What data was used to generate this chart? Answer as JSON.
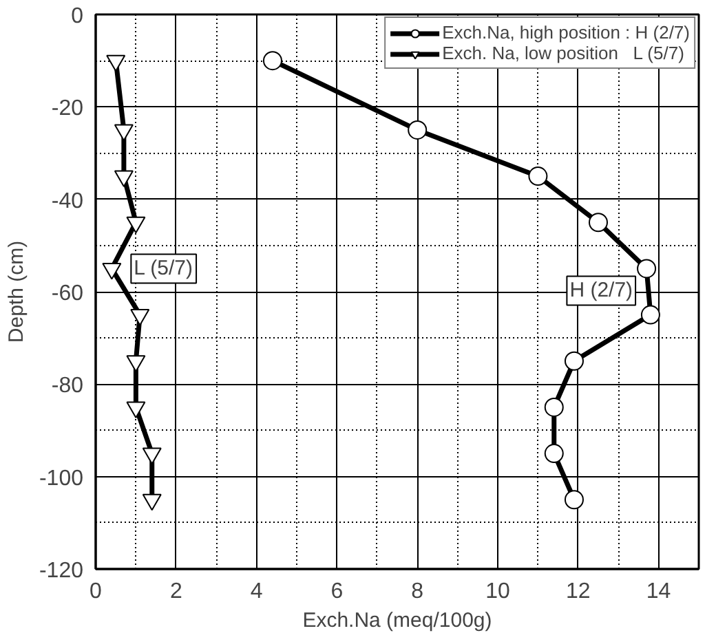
{
  "chart_data": {
    "type": "line",
    "xlabel": "Exch.Na (meq/100g)",
    "ylabel": "Depth (cm)",
    "xlim": [
      0,
      15
    ],
    "xticks": [
      0,
      2,
      4,
      6,
      8,
      10,
      12,
      14
    ],
    "ylim": [
      -120,
      0
    ],
    "yticks": [
      -120,
      -100,
      -80,
      -60,
      -40,
      -20,
      0
    ],
    "grid": true,
    "legend": "top right",
    "line_style": "solid",
    "series": [
      {
        "name": "Exch.Na, high position : H (2/7)",
        "color": "#000000",
        "marker": "circle",
        "x": [
          4.4,
          8.0,
          11.0,
          12.5,
          13.7,
          13.8,
          11.9,
          11.4,
          11.4,
          11.9
        ],
        "values": [
          -10,
          -25,
          -35,
          -45,
          -55,
          -65,
          -75,
          -85,
          -95,
          -105
        ]
      },
      {
        "name": "Exch. Na, low position   L (5/7)",
        "color": "#000000",
        "marker": "triangle",
        "x": [
          0.5,
          0.7,
          0.7,
          1.0,
          0.4,
          1.1,
          1.0,
          1.0,
          1.4,
          1.4
        ],
        "values": [
          -10,
          -25,
          -35,
          -45,
          -55,
          -65,
          -75,
          -85,
          -95,
          -105
        ]
      }
    ],
    "annotations": [
      "H (2/7)",
      "L (5/7)"
    ]
  }
}
